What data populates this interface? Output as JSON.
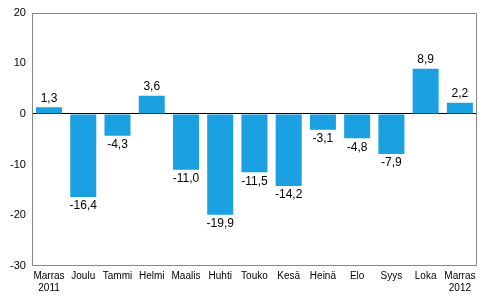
{
  "chart_data": {
    "type": "bar",
    "categories": [
      [
        "Marras",
        "2011"
      ],
      "Joulu",
      "Tammi",
      "Helmi",
      "Maalis",
      "Huhti",
      "Touko",
      "Kesä",
      "Heinä",
      "Elo",
      "Syys",
      "Loka",
      [
        "Marras",
        "2012"
      ]
    ],
    "values": [
      1.3,
      -16.4,
      -4.3,
      3.6,
      -11.0,
      -19.9,
      -11.5,
      -14.2,
      -3.1,
      -4.8,
      -7.9,
      8.9,
      2.2
    ],
    "value_labels": [
      "1,3",
      "-16,4",
      "-4,3",
      "3,6",
      "-11,0",
      "-19,9",
      "-11,5",
      "-14,2",
      "-3,1",
      "-4,8",
      "-7,9",
      "8,9",
      "2,2"
    ],
    "color": "#1ba1e2",
    "ylim": [
      -30,
      20
    ],
    "yticks": [
      -30,
      -20,
      -10,
      0,
      10,
      20
    ],
    "grid": false,
    "data_labels": true
  }
}
